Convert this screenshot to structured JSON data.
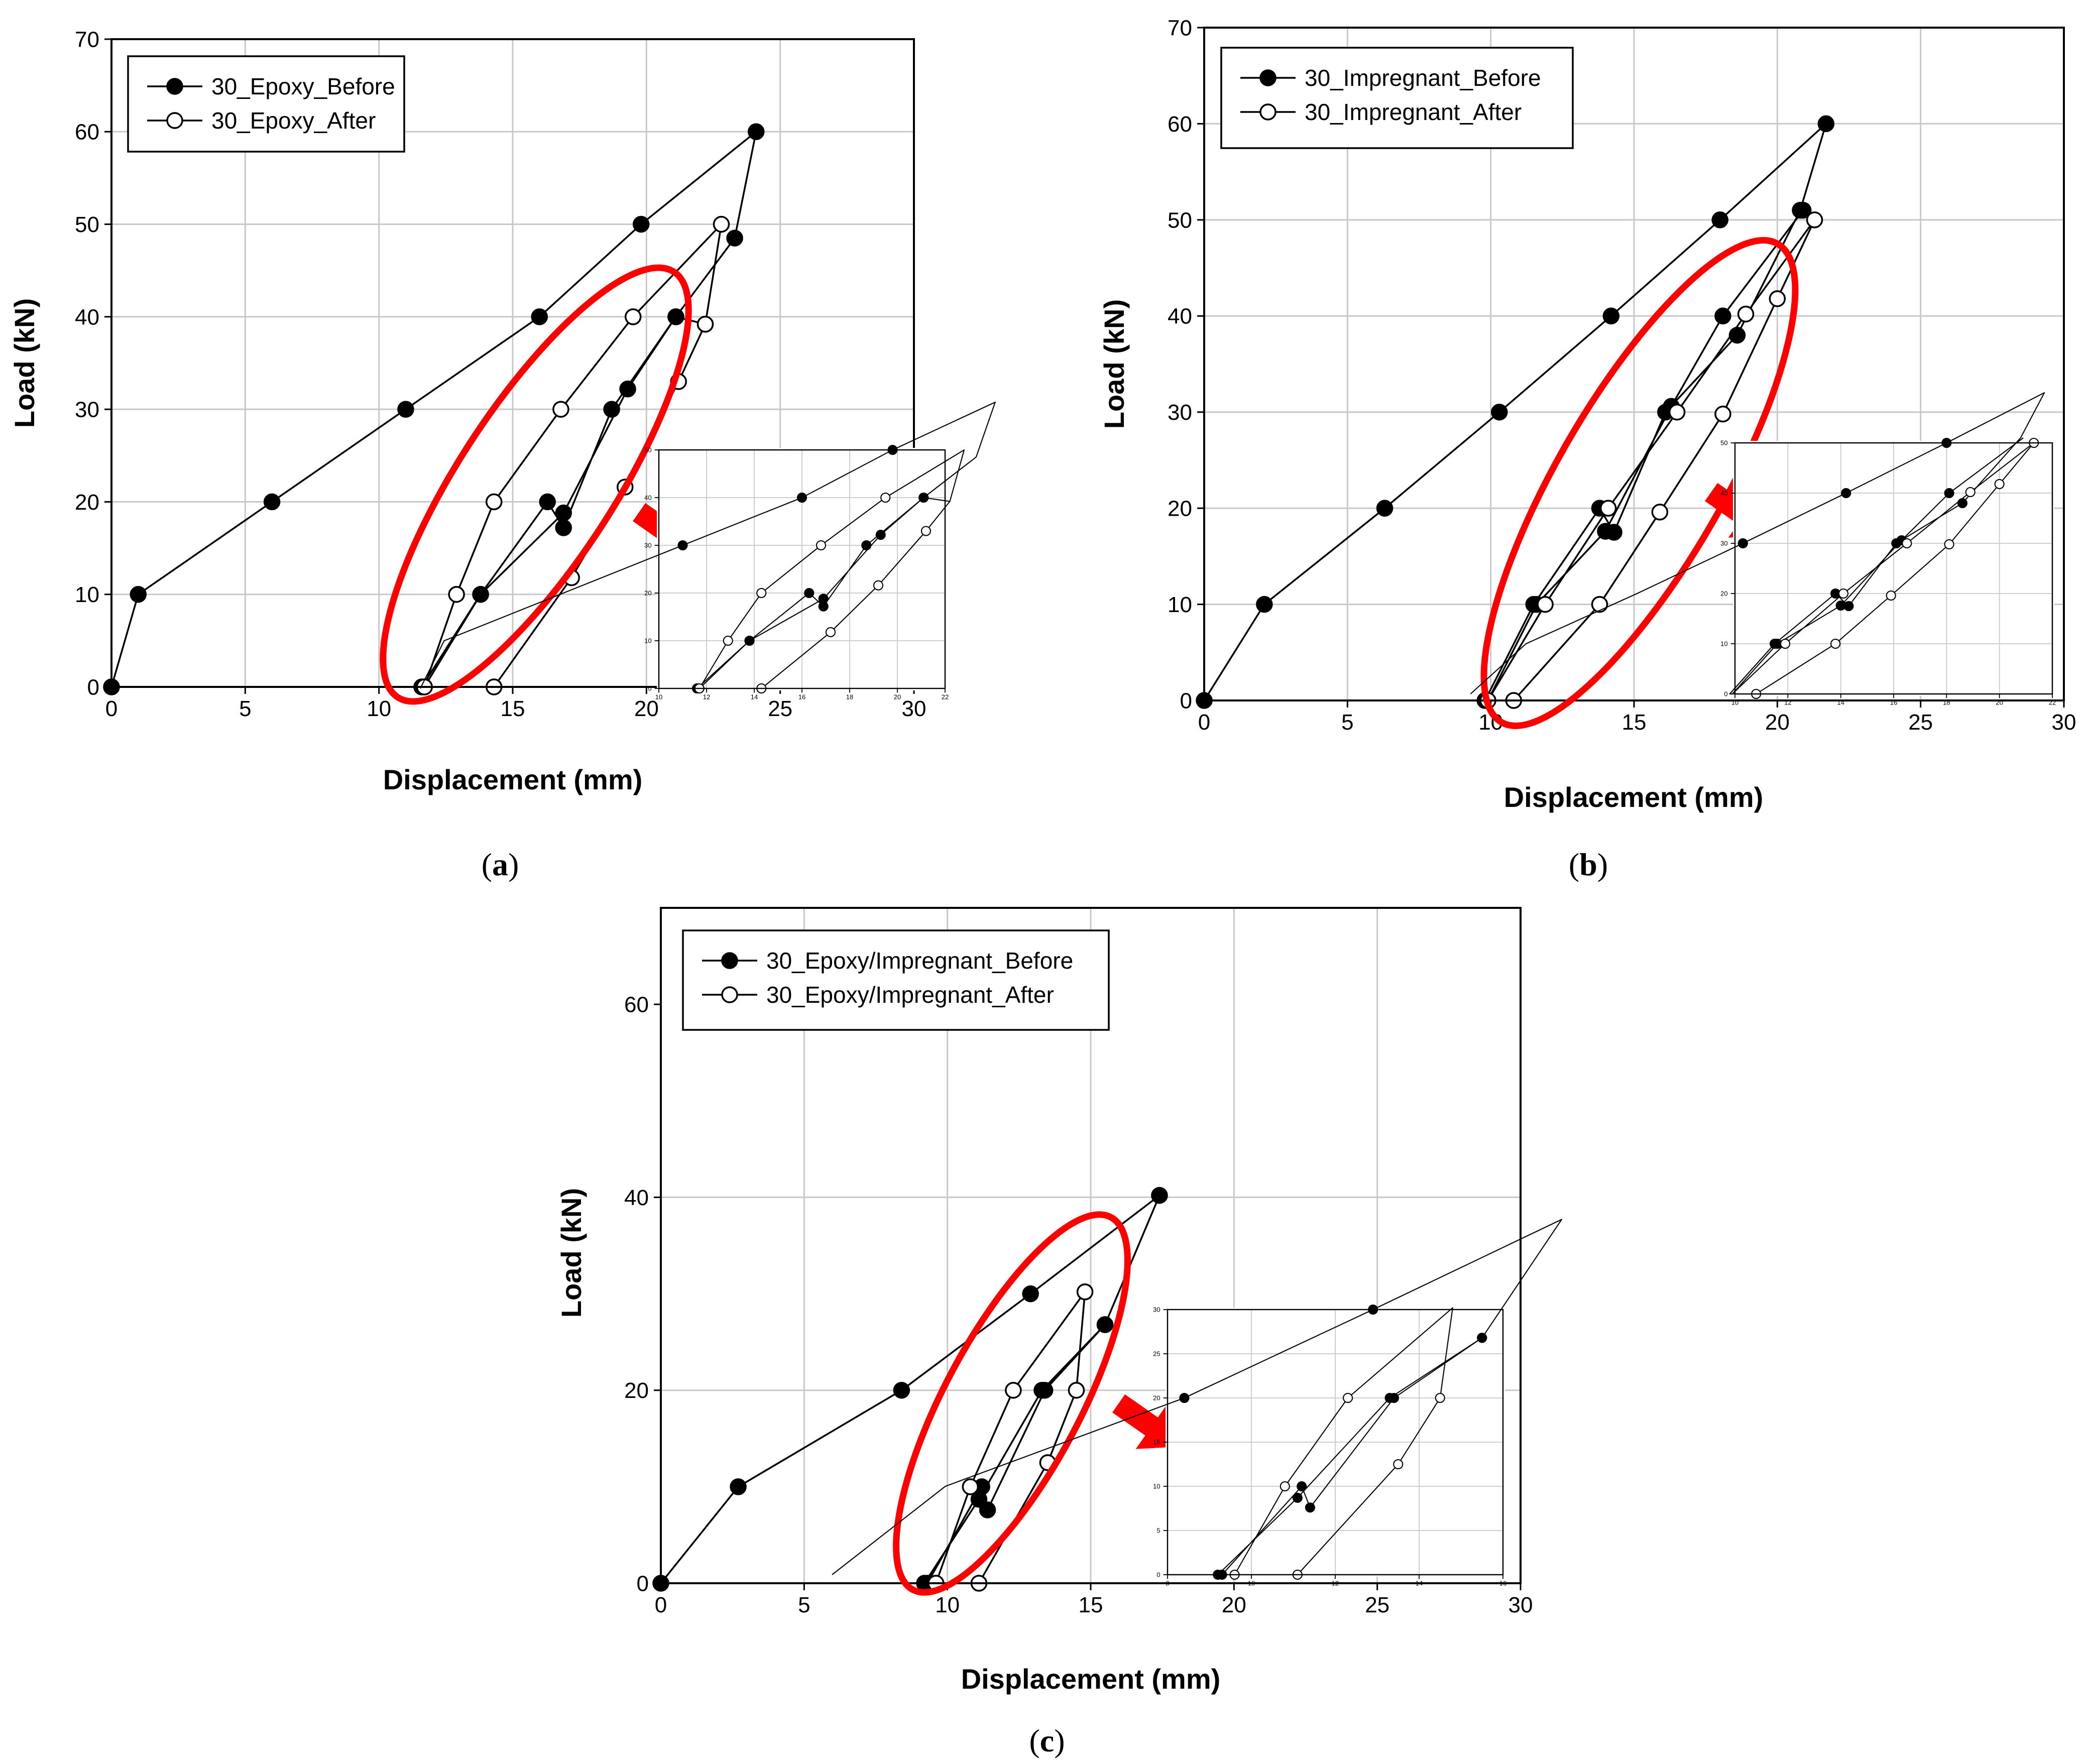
{
  "colors": {
    "line": "#000000",
    "grid": "#c8c8c8",
    "highlight": "#ff0000",
    "background": "#ffffff"
  },
  "chart_data": [
    {
      "type": "scatter",
      "caption_pre": "(",
      "caption_letter": "a",
      "caption_post": ")",
      "xlabel": "Displacement (mm)",
      "ylabel": "Load (kN)",
      "xlim": [
        0,
        30
      ],
      "ylim": [
        0,
        70
      ],
      "xticks": [
        0,
        5,
        10,
        15,
        20,
        25,
        30
      ],
      "yticks": [
        0,
        10,
        20,
        30,
        40,
        50,
        60,
        70
      ],
      "grid": true,
      "legend_position": "top-left",
      "series": [
        {
          "name": "30_Epoxy_Before",
          "marker": "filled",
          "x": [
            0,
            1,
            6,
            11,
            16,
            19.8,
            24.1,
            23.3,
            21.1,
            18.7,
            16.9,
            16.3,
            13.8,
            11.6,
            11.7,
            13.8,
            16.9,
            19.3,
            21.1,
            22.2
          ],
          "y": [
            0,
            10,
            20,
            30,
            40,
            50,
            60,
            48.5,
            40,
            30,
            17.2,
            20,
            10,
            0,
            0,
            10,
            18.8,
            32.2,
            40,
            39.2
          ]
        },
        {
          "name": "30_Epoxy_After",
          "marker": "open",
          "x": [
            11.7,
            12.9,
            14.3,
            16.8,
            19.5,
            22.8,
            22.2,
            21.2,
            19.2,
            17.2,
            14.3
          ],
          "y": [
            0,
            10,
            20,
            30,
            40,
            50,
            39.2,
            33,
            21.6,
            11.8,
            0
          ]
        }
      ],
      "inset": {
        "xlim": [
          10,
          22
        ],
        "ylim": [
          0,
          50
        ],
        "xticks": [
          10,
          12,
          14,
          16,
          18,
          20,
          22
        ],
        "yticks": [
          0,
          10,
          20,
          30,
          40,
          50
        ],
        "grid": true
      }
    },
    {
      "type": "scatter",
      "caption_pre": "(",
      "caption_letter": "b",
      "caption_post": ")",
      "xlabel": "Displacement (mm)",
      "ylabel": "Load (kN)",
      "xlim": [
        0,
        30
      ],
      "ylim": [
        0,
        70
      ],
      "xticks": [
        0,
        5,
        10,
        15,
        20,
        25,
        30
      ],
      "yticks": [
        0,
        10,
        20,
        30,
        40,
        50,
        60,
        70
      ],
      "grid": true,
      "legend_position": "top-left",
      "series": [
        {
          "name": "30_Impregnant_Before",
          "marker": "filled",
          "x": [
            0,
            2.1,
            6.3,
            10.3,
            14.2,
            18,
            21.7,
            20.8,
            18.6,
            16.1,
            14.3,
            13.8,
            11.5,
            9.8,
            9.9,
            11.6,
            14,
            16.3,
            18.1,
            20.9
          ],
          "y": [
            0,
            10,
            20,
            30,
            40,
            50,
            60,
            51,
            38,
            30,
            17.5,
            20,
            10,
            0,
            0,
            10,
            17.6,
            30.6,
            40,
            51
          ]
        },
        {
          "name": "30_Impregnant_After",
          "marker": "open",
          "x": [
            9.9,
            11.9,
            14.1,
            16.5,
            18.9,
            21.3,
            20,
            18.1,
            15.9,
            13.8,
            10.8
          ],
          "y": [
            0,
            10,
            20,
            30,
            40.2,
            50,
            41.8,
            29.8,
            19.6,
            10,
            0
          ]
        }
      ],
      "inset": {
        "xlim": [
          10,
          22
        ],
        "ylim": [
          0,
          50
        ],
        "xticks": [
          10,
          12,
          14,
          16,
          18,
          20,
          22
        ],
        "yticks": [
          0,
          10,
          20,
          30,
          40,
          50
        ],
        "grid": true
      }
    },
    {
      "type": "scatter",
      "caption_pre": "(",
      "caption_letter": "c",
      "caption_post": ")",
      "xlabel": "Displacement (mm)",
      "ylabel": "Load (kN)",
      "xlim": [
        0,
        30
      ],
      "ylim": [
        0,
        70
      ],
      "xticks": [
        0,
        5,
        10,
        15,
        20,
        25,
        30
      ],
      "yticks": [
        0,
        20,
        40,
        60
      ],
      "grid": true,
      "legend_position": "top-left",
      "series": [
        {
          "name": "30_Epoxy/Impregnant_Before",
          "marker": "filled",
          "x": [
            0,
            2.7,
            8.4,
            12.9,
            17.4,
            15.5,
            13.4,
            11.4,
            11.2,
            9.3,
            9.2,
            11.1,
            13.3,
            15.5,
            17.4
          ],
          "y": [
            0,
            10,
            20,
            30,
            40.2,
            26.8,
            20,
            7.6,
            10,
            0,
            0,
            8.7,
            20,
            26.8,
            40.2
          ]
        },
        {
          "name": "30_Epoxy/Impregnant_After",
          "marker": "open",
          "x": [
            9.6,
            10.8,
            12.3,
            14.8,
            14.5,
            13.5,
            11.1
          ],
          "y": [
            0,
            10,
            20,
            30.2,
            20,
            12.5,
            0
          ]
        }
      ],
      "inset": {
        "xlim": [
          8,
          16
        ],
        "ylim": [
          0,
          30
        ],
        "xticks": [
          8,
          10,
          12,
          14,
          16
        ],
        "yticks": [
          0,
          5,
          10,
          15,
          20,
          25,
          30
        ],
        "grid": true
      }
    }
  ]
}
